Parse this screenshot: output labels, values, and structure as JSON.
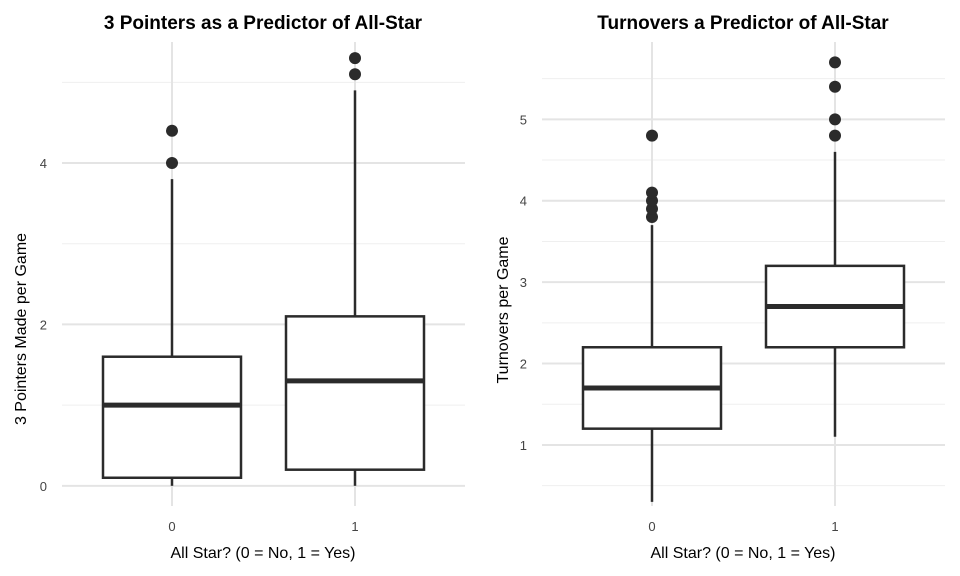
{
  "chart_data": [
    {
      "type": "boxplot",
      "title": "3 Pointers as a Predictor of All-Star",
      "xlabel": "All Star? (0 = No, 1 = Yes)",
      "ylabel": "3 Pointers Made per Game",
      "categories": [
        "0",
        "1"
      ],
      "y_ticks": [
        "0",
        "2",
        "4"
      ],
      "ylim": [
        -0.25,
        5.5
      ],
      "grid": true,
      "boxes": [
        {
          "category": "0",
          "whisker_low": 0.0,
          "q1": 0.1,
          "median": 1.0,
          "q3": 1.6,
          "whisker_high": 3.8,
          "outliers": [
            4.0,
            4.4
          ]
        },
        {
          "category": "1",
          "whisker_low": 0.0,
          "q1": 0.2,
          "median": 1.3,
          "q3": 2.1,
          "whisker_high": 4.9,
          "outliers": [
            5.1,
            5.3
          ]
        }
      ]
    },
    {
      "type": "boxplot",
      "title": "Turnovers a Predictor of All-Star",
      "xlabel": "All Star? (0 = No, 1 = Yes)",
      "ylabel": "Turnovers per Game",
      "categories": [
        "0",
        "1"
      ],
      "y_ticks": [
        "1",
        "2",
        "3",
        "4",
        "5"
      ],
      "ylim": [
        0.25,
        5.95
      ],
      "grid": true,
      "boxes": [
        {
          "category": "0",
          "whisker_low": 0.3,
          "q1": 1.2,
          "median": 1.7,
          "q3": 2.2,
          "whisker_high": 3.7,
          "outliers": [
            3.8,
            3.9,
            4.0,
            4.1,
            4.8
          ]
        },
        {
          "category": "1",
          "whisker_low": 1.1,
          "q1": 2.2,
          "median": 2.7,
          "q3": 3.2,
          "whisker_high": 4.6,
          "outliers": [
            4.8,
            5.0,
            5.4,
            5.7
          ]
        }
      ]
    }
  ]
}
